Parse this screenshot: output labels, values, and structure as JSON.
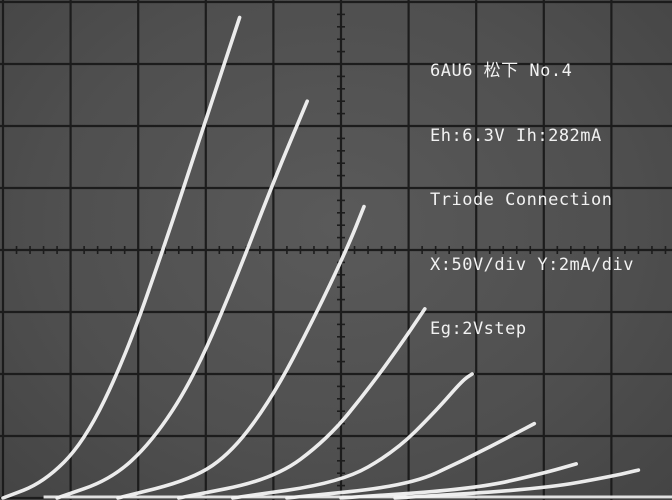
{
  "annotation": {
    "line1": "6AU6 松下 No.4",
    "line2": "Eh:6.3V Ih:282mA",
    "line3": "Triode Connection",
    "line4": "X:50V/div Y:2mA/div",
    "line5": "Eg:2Vstep"
  },
  "colors": {
    "screen": "#4f4f4f",
    "grid": "#1c1c1c",
    "trace": "#f4f4f4"
  },
  "chart_data": {
    "type": "line",
    "title": "",
    "xlabel": "",
    "ylabel": "",
    "x_unit": "V",
    "y_unit": "mA",
    "x_per_div": 50,
    "y_per_div": 2,
    "xlim": [
      0,
      500
    ],
    "ylim": [
      0,
      16
    ],
    "grid": true,
    "series": [
      {
        "points": [
          [
            0,
            0
          ],
          [
            30,
            0.5
          ],
          [
            60,
            1.8
          ],
          [
            90,
            4.5
          ],
          [
            120,
            8.2
          ],
          [
            150,
            12.2
          ],
          [
            175,
            15.5
          ]
        ]
      },
      {
        "points": [
          [
            40,
            0
          ],
          [
            80,
            0.6
          ],
          [
            110,
            1.8
          ],
          [
            140,
            3.8
          ],
          [
            170,
            6.8
          ],
          [
            200,
            10.2
          ],
          [
            225,
            12.8
          ]
        ]
      },
      {
        "points": [
          [
            85,
            0
          ],
          [
            140,
            0.6
          ],
          [
            170,
            1.5
          ],
          [
            200,
            3.3
          ],
          [
            230,
            5.8
          ],
          [
            255,
            8.1
          ],
          [
            267,
            9.4
          ]
        ]
      },
      {
        "points": [
          [
            130,
            0
          ],
          [
            200,
            0.6
          ],
          [
            240,
            1.9
          ],
          [
            270,
            3.5
          ],
          [
            295,
            5.0
          ],
          [
            312,
            6.1
          ]
        ]
      },
      {
        "points": [
          [
            170,
            0
          ],
          [
            250,
            0.5
          ],
          [
            290,
            1.5
          ],
          [
            320,
            2.8
          ],
          [
            340,
            3.8
          ],
          [
            347,
            4.0
          ]
        ]
      },
      {
        "points": [
          [
            210,
            0
          ],
          [
            300,
            0.4
          ],
          [
            340,
            1.2
          ],
          [
            380,
            2.1
          ],
          [
            393,
            2.4
          ]
        ]
      },
      {
        "points": [
          [
            250,
            0
          ],
          [
            350,
            0.3
          ],
          [
            400,
            0.8
          ],
          [
            424,
            1.1
          ]
        ]
      },
      {
        "points": [
          [
            290,
            0
          ],
          [
            400,
            0.3
          ],
          [
            450,
            0.7
          ],
          [
            470,
            0.9
          ]
        ]
      }
    ]
  }
}
